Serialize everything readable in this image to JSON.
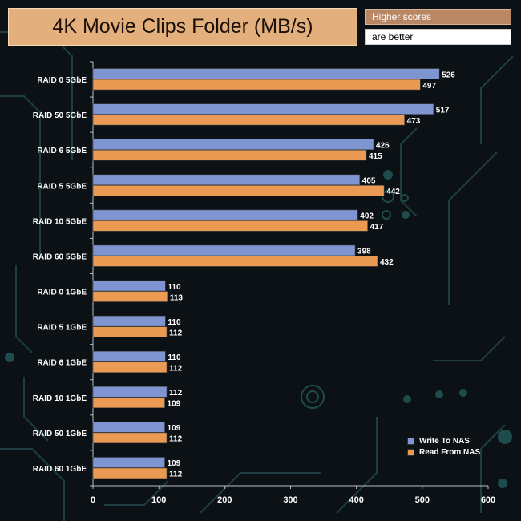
{
  "title": "4K Movie Clips Folder (MB/s)",
  "note_line1": "Higher scores",
  "note_line2": "are better",
  "chart_data": {
    "type": "bar",
    "orientation": "horizontal",
    "categories": [
      "RAID 0 5GbE",
      "RAID 50 5GbE",
      "RAID 6 5GbE",
      "RAID 5 5GbE",
      "RAID 10 5GbE",
      "RAID 60 5GbE",
      "RAID 0 1GbE",
      "RAID 5 1GbE",
      "RAID 6 1GbE",
      "RAID 10 1GbE",
      "RAID 50 1GbE",
      "RAID 60 1GbE"
    ],
    "series": [
      {
        "name": "Write To NAS",
        "color": "#7f95d1",
        "values": [
          526,
          517,
          426,
          405,
          402,
          398,
          110,
          110,
          110,
          112,
          109,
          109
        ]
      },
      {
        "name": "Read From NAS",
        "color": "#ea9a52",
        "values": [
          497,
          473,
          415,
          442,
          417,
          432,
          113,
          112,
          112,
          109,
          112,
          112
        ]
      }
    ],
    "xlim": [
      0,
      600
    ],
    "xticks": [
      0,
      100,
      200,
      300,
      400,
      500,
      600
    ],
    "grid": false,
    "legend_position": "bottom-right"
  }
}
